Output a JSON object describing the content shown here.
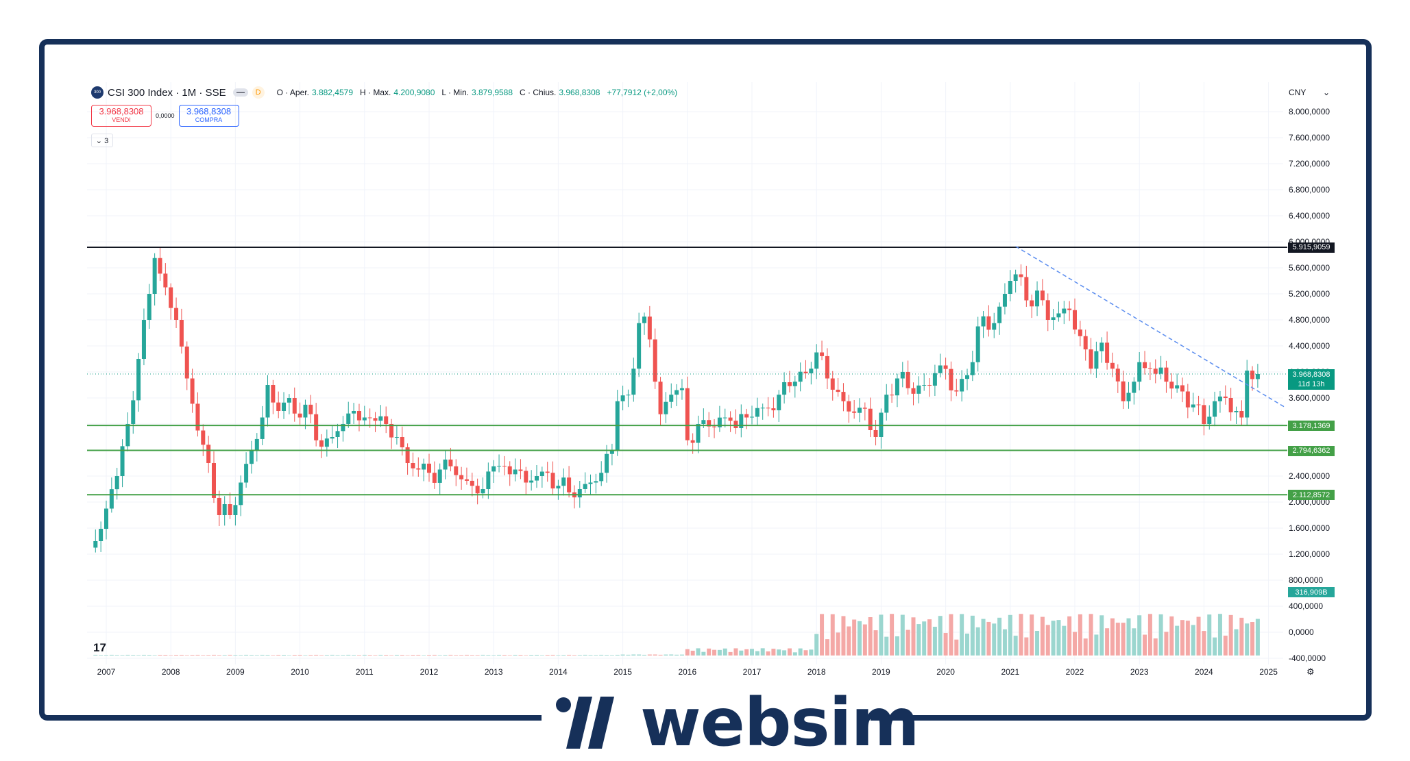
{
  "legend": {
    "symbol_logo": "300",
    "symbol_title": "CSI 300 Index · 1M · SSE",
    "badge": "D",
    "open_key": "O · Aper.",
    "open_val": "3.882,4579",
    "high_key": "H · Max.",
    "high_val": "4.200,9080",
    "low_key": "L · Min.",
    "low_val": "3.879,9588",
    "close_key": "C · Chius.",
    "close_val": "3.968,8308",
    "change_val": "+77,7912 (+2,00%)"
  },
  "trade": {
    "sell_price": "3.968,8308",
    "sell_label": "VENDI",
    "spread": "0,0000",
    "buy_price": "3.968,8308",
    "buy_label": "COMPRA"
  },
  "indicators_button": "⌄ 3",
  "currency": "CNY",
  "price_axis": [
    "8.000,0000",
    "7.600,0000",
    "7.200,0000",
    "6.800,0000",
    "6.400,0000",
    "6.000,0000",
    "5.600,0000",
    "5.200,0000",
    "4.800,0000",
    "4.400,0000",
    "4.000,0000",
    "3.600,0000",
    "3.200,0000",
    "2.800,0000",
    "2.400,0000",
    "2.000,0000",
    "1.600,0000",
    "1.200,0000",
    "800,0000",
    "400,0000",
    "0,0000",
    "-400,0000"
  ],
  "tags": {
    "resistance": "5.915,9059",
    "last_price": "3.968,8308",
    "countdown": "11d 13h",
    "support1": "3.178,1369",
    "support2": "2.794,6362",
    "support3": "2.112,8572",
    "volume": "316,909B"
  },
  "years": [
    "2007",
    "2008",
    "2009",
    "2010",
    "2011",
    "2012",
    "2013",
    "2014",
    "2015",
    "2016",
    "2017",
    "2018",
    "2019",
    "2020",
    "2021",
    "2022",
    "2023",
    "2024",
    "2025"
  ],
  "brand": {
    "name": "websim"
  },
  "colors": {
    "up": "#26a69a",
    "down": "#ef5350",
    "frame": "#163059",
    "support": "#43a047"
  },
  "chart_data": {
    "type": "candlestick",
    "title": "CSI 300 Index · 1M · SSE",
    "currency": "CNY",
    "ylim": [
      -400,
      8200
    ],
    "xlim": [
      "2006-10",
      "2025-02"
    ],
    "horizontal_lines": [
      5915.9059,
      3178.1369,
      2794.6362,
      2112.8572
    ],
    "last_price": 3968.8308,
    "trendline": [
      {
        "x": "2021-02",
        "y": 5930
      },
      {
        "x": "2024-11",
        "y": 3350
      }
    ],
    "series": [
      {
        "name": "CSI 300 Index",
        "points": [
          {
            "x": "2006-11",
            "c": 1400
          },
          {
            "x": "2007-01",
            "c": 1900
          },
          {
            "x": "2007-03",
            "c": 2400
          },
          {
            "x": "2007-05",
            "c": 3200
          },
          {
            "x": "2007-07",
            "c": 4200
          },
          {
            "x": "2007-09",
            "c": 5200
          },
          {
            "x": "2007-10",
            "c": 5750
          },
          {
            "x": "2007-12",
            "c": 5300
          },
          {
            "x": "2008-02",
            "c": 4800
          },
          {
            "x": "2008-04",
            "c": 3900
          },
          {
            "x": "2008-06",
            "c": 3100
          },
          {
            "x": "2008-08",
            "c": 2600
          },
          {
            "x": "2008-10",
            "c": 1800
          },
          {
            "x": "2008-12",
            "c": 1800
          },
          {
            "x": "2009-02",
            "c": 2300
          },
          {
            "x": "2009-04",
            "c": 2800
          },
          {
            "x": "2009-06",
            "c": 3300
          },
          {
            "x": "2009-07",
            "c": 3800
          },
          {
            "x": "2009-09",
            "c": 3400
          },
          {
            "x": "2009-11",
            "c": 3600
          },
          {
            "x": "2010-01",
            "c": 3300
          },
          {
            "x": "2010-03",
            "c": 3350
          },
          {
            "x": "2010-05",
            "c": 2850
          },
          {
            "x": "2010-07",
            "c": 3000
          },
          {
            "x": "2010-09",
            "c": 3200
          },
          {
            "x": "2010-11",
            "c": 3400
          },
          {
            "x": "2011-01",
            "c": 3300
          },
          {
            "x": "2011-03",
            "c": 3250
          },
          {
            "x": "2011-05",
            "c": 3200
          },
          {
            "x": "2011-07",
            "c": 3000
          },
          {
            "x": "2011-09",
            "c": 2600
          },
          {
            "x": "2011-11",
            "c": 2500
          },
          {
            "x": "2012-01",
            "c": 2450
          },
          {
            "x": "2012-03",
            "c": 2500
          },
          {
            "x": "2012-05",
            "c": 2550
          },
          {
            "x": "2012-07",
            "c": 2350
          },
          {
            "x": "2012-09",
            "c": 2250
          },
          {
            "x": "2012-11",
            "c": 2200
          },
          {
            "x": "2013-01",
            "c": 2550
          },
          {
            "x": "2013-03",
            "c": 2550
          },
          {
            "x": "2013-05",
            "c": 2500
          },
          {
            "x": "2013-07",
            "c": 2300
          },
          {
            "x": "2013-09",
            "c": 2400
          },
          {
            "x": "2013-11",
            "c": 2450
          },
          {
            "x": "2014-01",
            "c": 2250
          },
          {
            "x": "2014-03",
            "c": 2150
          },
          {
            "x": "2014-05",
            "c": 2200
          },
          {
            "x": "2014-07",
            "c": 2300
          },
          {
            "x": "2014-09",
            "c": 2450
          },
          {
            "x": "2014-11",
            "c": 2800
          },
          {
            "x": "2014-12",
            "c": 3550
          },
          {
            "x": "2015-02",
            "c": 3650
          },
          {
            "x": "2015-03",
            "c": 4050
          },
          {
            "x": "2015-04",
            "c": 4750
          },
          {
            "x": "2015-05",
            "c": 4850
          },
          {
            "x": "2015-06",
            "c": 4500
          },
          {
            "x": "2015-07",
            "c": 3850
          },
          {
            "x": "2015-08",
            "c": 3350
          },
          {
            "x": "2015-10",
            "c": 3650
          },
          {
            "x": "2015-12",
            "c": 3750
          },
          {
            "x": "2016-01",
            "c": 2950
          },
          {
            "x": "2016-03",
            "c": 3200
          },
          {
            "x": "2016-06",
            "c": 3150
          },
          {
            "x": "2016-09",
            "c": 3250
          },
          {
            "x": "2016-12",
            "c": 3300
          },
          {
            "x": "2017-03",
            "c": 3450
          },
          {
            "x": "2017-06",
            "c": 3650
          },
          {
            "x": "2017-09",
            "c": 3850
          },
          {
            "x": "2017-12",
            "c": 4050
          },
          {
            "x": "2018-01",
            "c": 4300
          },
          {
            "x": "2018-03",
            "c": 3900
          },
          {
            "x": "2018-06",
            "c": 3550
          },
          {
            "x": "2018-09",
            "c": 3450
          },
          {
            "x": "2018-12",
            "c": 3000
          },
          {
            "x": "2019-02",
            "c": 3650
          },
          {
            "x": "2019-04",
            "c": 3900
          },
          {
            "x": "2019-06",
            "c": 3750
          },
          {
            "x": "2019-09",
            "c": 3800
          },
          {
            "x": "2019-12",
            "c": 4100
          },
          {
            "x": "2020-03",
            "c": 3700
          },
          {
            "x": "2020-06",
            "c": 4150
          },
          {
            "x": "2020-07",
            "c": 4700
          },
          {
            "x": "2020-10",
            "c": 4750
          },
          {
            "x": "2020-12",
            "c": 5200
          },
          {
            "x": "2021-01",
            "c": 5400
          },
          {
            "x": "2021-02",
            "c": 5500
          },
          {
            "x": "2021-04",
            "c": 5100
          },
          {
            "x": "2021-06",
            "c": 5250
          },
          {
            "x": "2021-08",
            "c": 4800
          },
          {
            "x": "2021-10",
            "c": 4900
          },
          {
            "x": "2021-12",
            "c": 4950
          },
          {
            "x": "2022-02",
            "c": 4550
          },
          {
            "x": "2022-04",
            "c": 4050
          },
          {
            "x": "2022-06",
            "c": 4450
          },
          {
            "x": "2022-08",
            "c": 4050
          },
          {
            "x": "2022-10",
            "c": 3550
          },
          {
            "x": "2022-12",
            "c": 3850
          },
          {
            "x": "2023-01",
            "c": 4150
          },
          {
            "x": "2023-03",
            "c": 4050
          },
          {
            "x": "2023-06",
            "c": 3850
          },
          {
            "x": "2023-09",
            "c": 3700
          },
          {
            "x": "2023-11",
            "c": 3500
          },
          {
            "x": "2024-01",
            "c": 3200
          },
          {
            "x": "2024-03",
            "c": 3550
          },
          {
            "x": "2024-05",
            "c": 3600
          },
          {
            "x": "2024-07",
            "c": 3400
          },
          {
            "x": "2024-08",
            "c": 3300
          },
          {
            "x": "2024-09",
            "c": 4020
          },
          {
            "x": "2024-10",
            "c": 3890
          },
          {
            "x": "2024-11",
            "c": 3969
          }
        ]
      }
    ]
  }
}
